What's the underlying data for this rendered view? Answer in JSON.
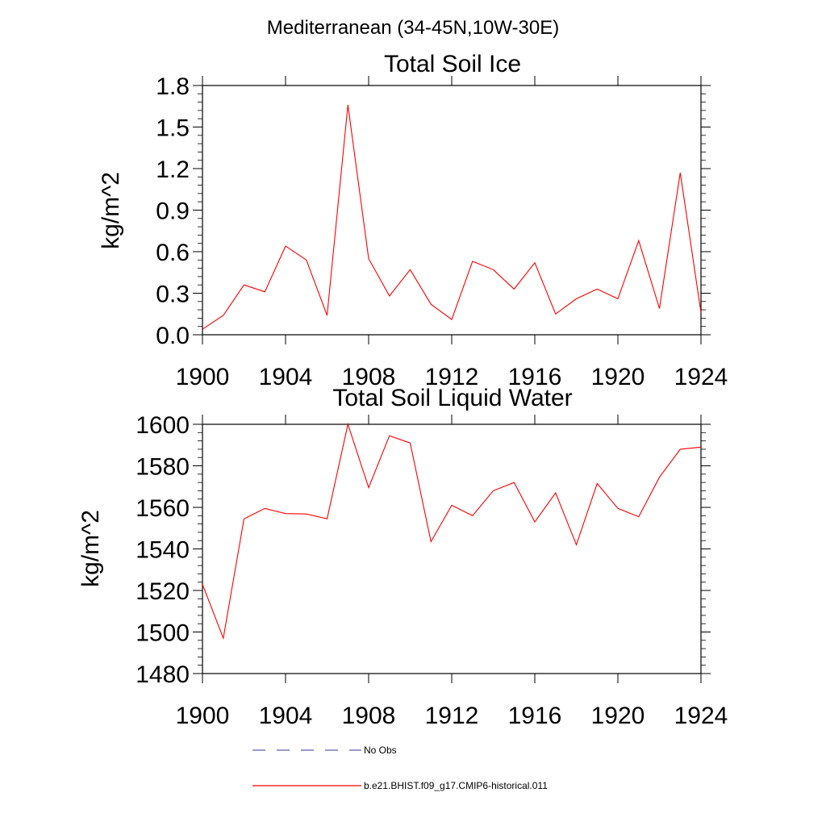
{
  "figure": {
    "title": "Mediterranean (34-45N,10W-30E)"
  },
  "chart_data": [
    {
      "type": "line",
      "title": "Total Soil Ice",
      "xlabel": "",
      "ylabel": "kg/m^2",
      "xlim": [
        1900,
        1924
      ],
      "ylim": [
        0.0,
        1.8
      ],
      "x_ticks": [
        1900,
        1904,
        1908,
        1912,
        1916,
        1920,
        1924
      ],
      "x_tick_labels": [
        "1900",
        "1904",
        "1908",
        "1912",
        "1916",
        "1920",
        "1924"
      ],
      "y_ticks": [
        0.0,
        0.3,
        0.6,
        0.9,
        1.2,
        1.5,
        1.8
      ],
      "y_tick_labels": [
        "0.0",
        "0.3",
        "0.6",
        "0.9",
        "1.2",
        "1.5",
        "1.8"
      ],
      "x": [
        1900,
        1901,
        1902,
        1903,
        1904,
        1905,
        1906,
        1907,
        1908,
        1909,
        1910,
        1911,
        1912,
        1913,
        1914,
        1915,
        1916,
        1917,
        1918,
        1919,
        1920,
        1921,
        1922,
        1923,
        1924
      ],
      "series": [
        {
          "name": "b.e21.BHIST.f09_g17.CMIP6-historical.011",
          "color": "#ff0000",
          "values": [
            0.04,
            0.14,
            0.36,
            0.31,
            0.64,
            0.54,
            0.14,
            1.66,
            0.55,
            0.28,
            0.47,
            0.22,
            0.11,
            0.53,
            0.47,
            0.33,
            0.52,
            0.15,
            0.26,
            0.33,
            0.26,
            0.68,
            0.19,
            1.17,
            0.16
          ]
        }
      ]
    },
    {
      "type": "line",
      "title": "Total Soil Liquid Water",
      "xlabel": "",
      "ylabel": "kg/m^2",
      "xlim": [
        1900,
        1924
      ],
      "ylim": [
        1480,
        1600
      ],
      "x_ticks": [
        1900,
        1904,
        1908,
        1912,
        1916,
        1920,
        1924
      ],
      "x_tick_labels": [
        "1900",
        "1904",
        "1908",
        "1912",
        "1916",
        "1920",
        "1924"
      ],
      "y_ticks": [
        1480,
        1500,
        1520,
        1540,
        1560,
        1580,
        1600
      ],
      "y_tick_labels": [
        "1480",
        "1500",
        "1520",
        "1540",
        "1560",
        "1580",
        "1600"
      ],
      "x": [
        1900,
        1901,
        1902,
        1903,
        1904,
        1905,
        1906,
        1907,
        1908,
        1909,
        1910,
        1911,
        1912,
        1913,
        1914,
        1915,
        1916,
        1917,
        1918,
        1919,
        1920,
        1921,
        1922,
        1923,
        1924
      ],
      "series": [
        {
          "name": "b.e21.BHIST.f09_g17.CMIP6-historical.011",
          "color": "#ff0000",
          "values": [
            1523,
            1497,
            1554.5,
            1559.5,
            1557,
            1556.8,
            1554.5,
            1600,
            1569.5,
            1594.5,
            1591,
            1543.5,
            1561,
            1556,
            1568,
            1572,
            1553,
            1567,
            1542,
            1571.5,
            1559.5,
            1555.5,
            1574.5,
            1588,
            1589
          ]
        }
      ]
    }
  ],
  "legend": {
    "position": "bottom",
    "entries": [
      {
        "label": "No Obs",
        "color": "#5b5f9e",
        "style": "dashed"
      },
      {
        "label": "b.e21.BHIST.f09_g17.CMIP6-historical.011",
        "color": "#ff0000",
        "style": "solid"
      }
    ]
  }
}
